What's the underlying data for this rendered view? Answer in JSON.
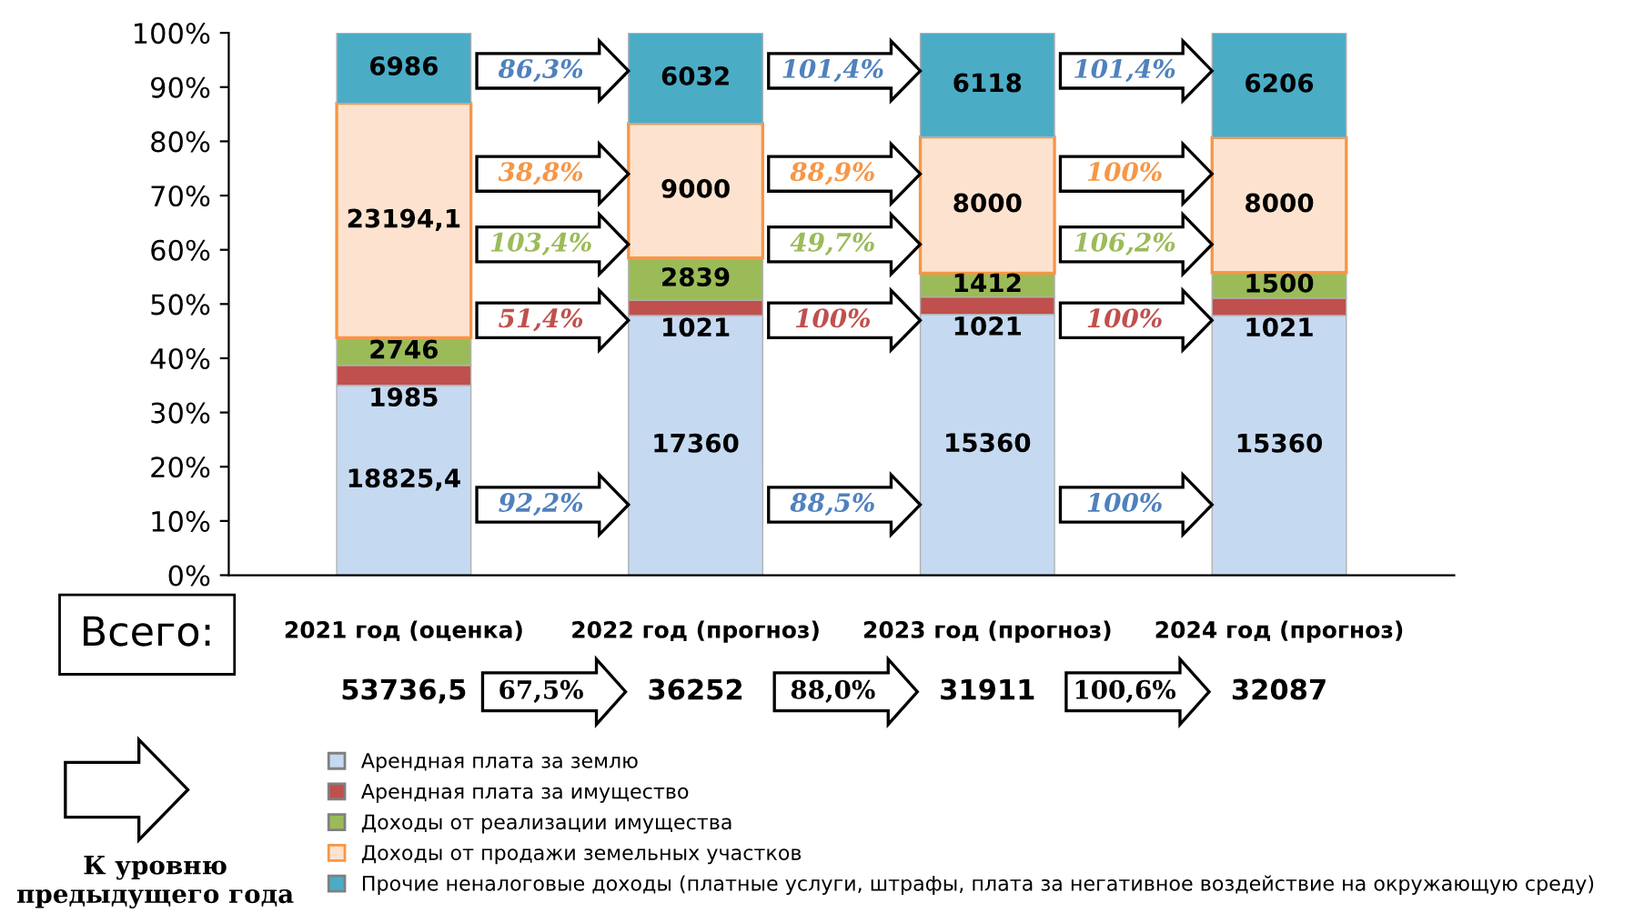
{
  "chart_data": {
    "type": "bar",
    "stacked": true,
    "categories": [
      "2021 год (оценка)",
      "2022 год (прогноз)",
      "2023 год (прогноз)",
      "2024 год (прогноз)"
    ],
    "series": [
      {
        "name": "Арендная плата за землю",
        "color": "#c5d9f1",
        "values": [
          35.0,
          47.9,
          48.1,
          47.9
        ]
      },
      {
        "name": "Арендная плата за имущество",
        "color": "#c0504d",
        "values": [
          3.7,
          2.8,
          3.2,
          3.2
        ]
      },
      {
        "name": "Доходы от реализации имущества",
        "color": "#9bbb59",
        "values": [
          5.1,
          7.8,
          4.4,
          4.7
        ]
      },
      {
        "name": "Доходы от продажи земельных участков",
        "color": "#fde3cf",
        "values": [
          43.2,
          24.8,
          25.1,
          24.9
        ]
      },
      {
        "name": "Прочие неналоговые доходы (платные услуги, штрафы, плата за негативное воздействие на окружающую среду)",
        "color": "#4bacc6",
        "values": [
          13.0,
          16.7,
          19.2,
          19.3
        ]
      }
    ],
    "ylim": [
      0,
      100
    ],
    "yticks": [
      {
        "value": 0,
        "label": "0%"
      },
      {
        "value": 10,
        "label": "10%"
      },
      {
        "value": 20,
        "label": "20%"
      },
      {
        "value": 30,
        "label": "30%"
      },
      {
        "value": 40,
        "label": "40%"
      },
      {
        "value": 50,
        "label": "50%"
      },
      {
        "value": 60,
        "label": "60%"
      },
      {
        "value": 70,
        "label": "70%"
      },
      {
        "value": 80,
        "label": "80%"
      },
      {
        "value": 90,
        "label": "90%"
      },
      {
        "value": 100,
        "label": "100%"
      }
    ],
    "legend": "bottom",
    "annotations": [
      "Всего:",
      "67,5%",
      "88,0%",
      "100,6%",
      "92,2%",
      "51,4%",
      "103,4%",
      "38,8%",
      "86,3%",
      "88,5%",
      "100%",
      "49,7%",
      "88,9%",
      "101,4%",
      "100%",
      "100%",
      "106,2%",
      "100%",
      "101,4%",
      "К уровню предыдущего года",
      "53736,5",
      "36252",
      "31911",
      "32087",
      "18825,4",
      "17360",
      "15360",
      "15360",
      "1985",
      "1021",
      "1021",
      "1021",
      "2746",
      "2839",
      "1412",
      "1500",
      "23194,1",
      "9000",
      "8000",
      "8000",
      "6986",
      "6032",
      "6118",
      "6206"
    ]
  }
}
